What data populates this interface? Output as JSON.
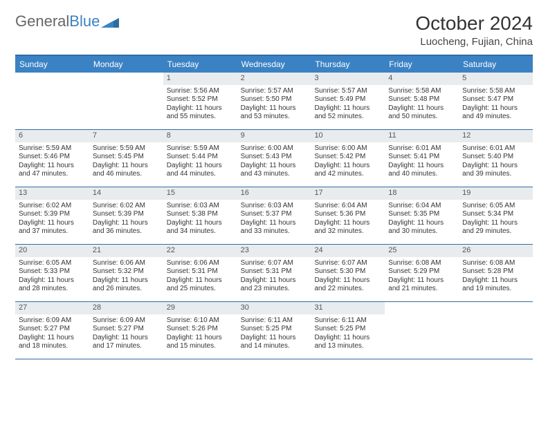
{
  "brand": {
    "part1": "General",
    "part2": "Blue"
  },
  "title": "October 2024",
  "location": "Luocheng, Fujian, China",
  "colors": {
    "header_bg": "#3b82c4",
    "border": "#2d6ca2",
    "daynum_bg": "#e8ecef",
    "text": "#333333"
  },
  "day_labels": [
    "Sunday",
    "Monday",
    "Tuesday",
    "Wednesday",
    "Thursday",
    "Friday",
    "Saturday"
  ],
  "weeks": [
    [
      {
        "n": "",
        "sr": "",
        "ss": "",
        "dl": ""
      },
      {
        "n": "",
        "sr": "",
        "ss": "",
        "dl": ""
      },
      {
        "n": "1",
        "sr": "Sunrise: 5:56 AM",
        "ss": "Sunset: 5:52 PM",
        "dl": "Daylight: 11 hours and 55 minutes."
      },
      {
        "n": "2",
        "sr": "Sunrise: 5:57 AM",
        "ss": "Sunset: 5:50 PM",
        "dl": "Daylight: 11 hours and 53 minutes."
      },
      {
        "n": "3",
        "sr": "Sunrise: 5:57 AM",
        "ss": "Sunset: 5:49 PM",
        "dl": "Daylight: 11 hours and 52 minutes."
      },
      {
        "n": "4",
        "sr": "Sunrise: 5:58 AM",
        "ss": "Sunset: 5:48 PM",
        "dl": "Daylight: 11 hours and 50 minutes."
      },
      {
        "n": "5",
        "sr": "Sunrise: 5:58 AM",
        "ss": "Sunset: 5:47 PM",
        "dl": "Daylight: 11 hours and 49 minutes."
      }
    ],
    [
      {
        "n": "6",
        "sr": "Sunrise: 5:59 AM",
        "ss": "Sunset: 5:46 PM",
        "dl": "Daylight: 11 hours and 47 minutes."
      },
      {
        "n": "7",
        "sr": "Sunrise: 5:59 AM",
        "ss": "Sunset: 5:45 PM",
        "dl": "Daylight: 11 hours and 46 minutes."
      },
      {
        "n": "8",
        "sr": "Sunrise: 5:59 AM",
        "ss": "Sunset: 5:44 PM",
        "dl": "Daylight: 11 hours and 44 minutes."
      },
      {
        "n": "9",
        "sr": "Sunrise: 6:00 AM",
        "ss": "Sunset: 5:43 PM",
        "dl": "Daylight: 11 hours and 43 minutes."
      },
      {
        "n": "10",
        "sr": "Sunrise: 6:00 AM",
        "ss": "Sunset: 5:42 PM",
        "dl": "Daylight: 11 hours and 42 minutes."
      },
      {
        "n": "11",
        "sr": "Sunrise: 6:01 AM",
        "ss": "Sunset: 5:41 PM",
        "dl": "Daylight: 11 hours and 40 minutes."
      },
      {
        "n": "12",
        "sr": "Sunrise: 6:01 AM",
        "ss": "Sunset: 5:40 PM",
        "dl": "Daylight: 11 hours and 39 minutes."
      }
    ],
    [
      {
        "n": "13",
        "sr": "Sunrise: 6:02 AM",
        "ss": "Sunset: 5:39 PM",
        "dl": "Daylight: 11 hours and 37 minutes."
      },
      {
        "n": "14",
        "sr": "Sunrise: 6:02 AM",
        "ss": "Sunset: 5:39 PM",
        "dl": "Daylight: 11 hours and 36 minutes."
      },
      {
        "n": "15",
        "sr": "Sunrise: 6:03 AM",
        "ss": "Sunset: 5:38 PM",
        "dl": "Daylight: 11 hours and 34 minutes."
      },
      {
        "n": "16",
        "sr": "Sunrise: 6:03 AM",
        "ss": "Sunset: 5:37 PM",
        "dl": "Daylight: 11 hours and 33 minutes."
      },
      {
        "n": "17",
        "sr": "Sunrise: 6:04 AM",
        "ss": "Sunset: 5:36 PM",
        "dl": "Daylight: 11 hours and 32 minutes."
      },
      {
        "n": "18",
        "sr": "Sunrise: 6:04 AM",
        "ss": "Sunset: 5:35 PM",
        "dl": "Daylight: 11 hours and 30 minutes."
      },
      {
        "n": "19",
        "sr": "Sunrise: 6:05 AM",
        "ss": "Sunset: 5:34 PM",
        "dl": "Daylight: 11 hours and 29 minutes."
      }
    ],
    [
      {
        "n": "20",
        "sr": "Sunrise: 6:05 AM",
        "ss": "Sunset: 5:33 PM",
        "dl": "Daylight: 11 hours and 28 minutes."
      },
      {
        "n": "21",
        "sr": "Sunrise: 6:06 AM",
        "ss": "Sunset: 5:32 PM",
        "dl": "Daylight: 11 hours and 26 minutes."
      },
      {
        "n": "22",
        "sr": "Sunrise: 6:06 AM",
        "ss": "Sunset: 5:31 PM",
        "dl": "Daylight: 11 hours and 25 minutes."
      },
      {
        "n": "23",
        "sr": "Sunrise: 6:07 AM",
        "ss": "Sunset: 5:31 PM",
        "dl": "Daylight: 11 hours and 23 minutes."
      },
      {
        "n": "24",
        "sr": "Sunrise: 6:07 AM",
        "ss": "Sunset: 5:30 PM",
        "dl": "Daylight: 11 hours and 22 minutes."
      },
      {
        "n": "25",
        "sr": "Sunrise: 6:08 AM",
        "ss": "Sunset: 5:29 PM",
        "dl": "Daylight: 11 hours and 21 minutes."
      },
      {
        "n": "26",
        "sr": "Sunrise: 6:08 AM",
        "ss": "Sunset: 5:28 PM",
        "dl": "Daylight: 11 hours and 19 minutes."
      }
    ],
    [
      {
        "n": "27",
        "sr": "Sunrise: 6:09 AM",
        "ss": "Sunset: 5:27 PM",
        "dl": "Daylight: 11 hours and 18 minutes."
      },
      {
        "n": "28",
        "sr": "Sunrise: 6:09 AM",
        "ss": "Sunset: 5:27 PM",
        "dl": "Daylight: 11 hours and 17 minutes."
      },
      {
        "n": "29",
        "sr": "Sunrise: 6:10 AM",
        "ss": "Sunset: 5:26 PM",
        "dl": "Daylight: 11 hours and 15 minutes."
      },
      {
        "n": "30",
        "sr": "Sunrise: 6:11 AM",
        "ss": "Sunset: 5:25 PM",
        "dl": "Daylight: 11 hours and 14 minutes."
      },
      {
        "n": "31",
        "sr": "Sunrise: 6:11 AM",
        "ss": "Sunset: 5:25 PM",
        "dl": "Daylight: 11 hours and 13 minutes."
      },
      {
        "n": "",
        "sr": "",
        "ss": "",
        "dl": ""
      },
      {
        "n": "",
        "sr": "",
        "ss": "",
        "dl": ""
      }
    ]
  ]
}
